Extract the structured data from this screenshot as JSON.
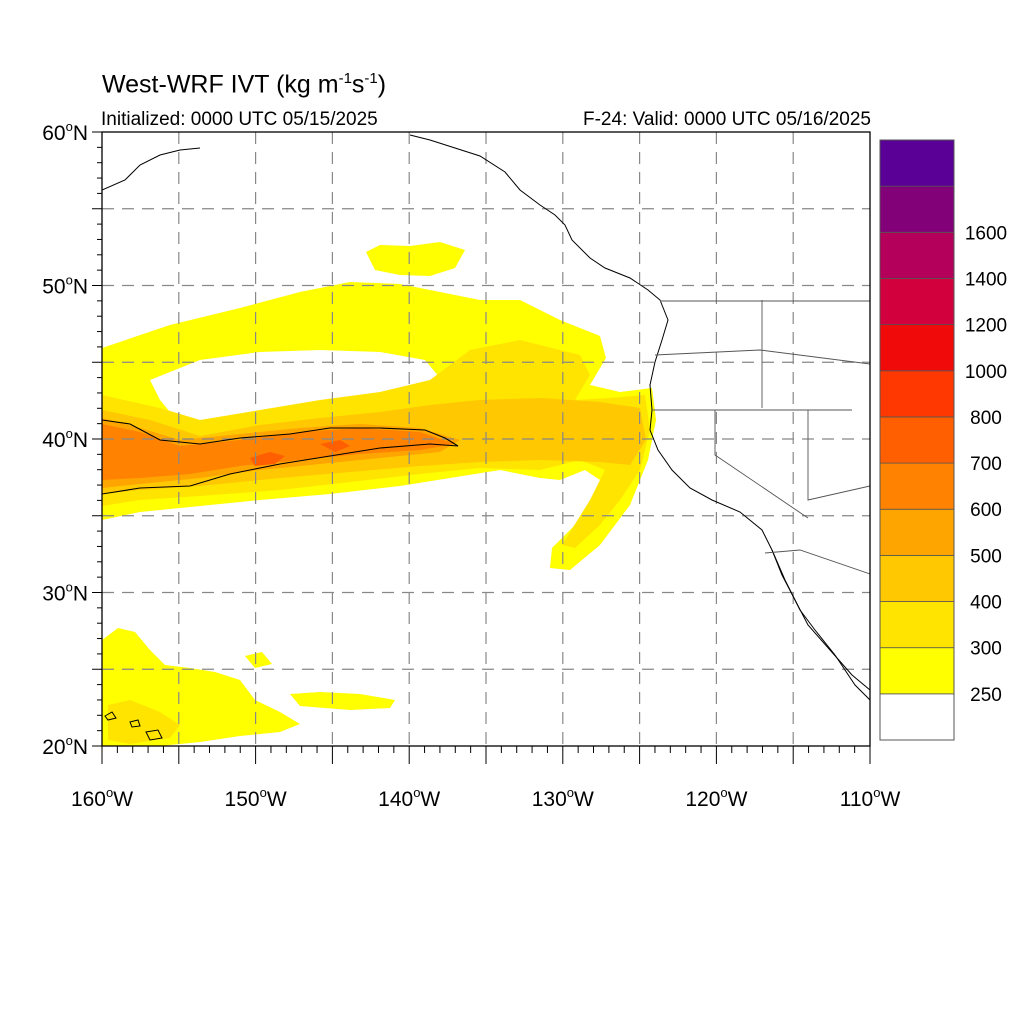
{
  "title": {
    "text": "West-WRF IVT (kg m",
    "sup1": "-1",
    "mid": "s",
    "sup2": "-1",
    "close": ")"
  },
  "initialized": "Initialized: 0000 UTC 05/15/2025",
  "valid": "F-24: Valid: 0000 UTC 05/16/2025",
  "axes": {
    "lon_range": [
      -160,
      -110
    ],
    "lat_range": [
      20,
      60
    ],
    "x_ticks": [
      {
        "value": -160,
        "label": "160",
        "deg": "o",
        "hemi": "W"
      },
      {
        "value": -150,
        "label": "150",
        "deg": "o",
        "hemi": "W"
      },
      {
        "value": -140,
        "label": "140",
        "deg": "o",
        "hemi": "W"
      },
      {
        "value": -130,
        "label": "130",
        "deg": "o",
        "hemi": "W"
      },
      {
        "value": -120,
        "label": "120",
        "deg": "o",
        "hemi": "W"
      },
      {
        "value": -110,
        "label": "110",
        "deg": "o",
        "hemi": "W"
      }
    ],
    "y_ticks": [
      {
        "value": 60,
        "label": "60",
        "deg": "o",
        "hemi": "N"
      },
      {
        "value": 50,
        "label": "50",
        "deg": "o",
        "hemi": "N"
      },
      {
        "value": 40,
        "label": "40",
        "deg": "o",
        "hemi": "N"
      },
      {
        "value": 30,
        "label": "30",
        "deg": "o",
        "hemi": "N"
      },
      {
        "value": 20,
        "label": "20",
        "deg": "o",
        "hemi": "N"
      }
    ],
    "grid_lon_step": 5,
    "grid_lat_step": 5,
    "grid": "dashed"
  },
  "colorbar": {
    "levels": [
      {
        "label": "250",
        "color": "#ffff00"
      },
      {
        "label": "300",
        "color": "#ffe400"
      },
      {
        "label": "400",
        "color": "#ffc800"
      },
      {
        "label": "500",
        "color": "#ffa500"
      },
      {
        "label": "600",
        "color": "#ff8200"
      },
      {
        "label": "700",
        "color": "#ff5f00"
      },
      {
        "label": "800",
        "color": "#ff3700"
      },
      {
        "label": "1000",
        "color": "#f00a0a"
      },
      {
        "label": "1200",
        "color": "#d2003c"
      },
      {
        "label": "1400",
        "color": "#b4005a"
      },
      {
        "label": "1600",
        "color": "#820078"
      },
      {
        "label": "",
        "color": "#5a0096"
      }
    ]
  },
  "colors": {
    "ivt250": "#ffff00",
    "ivt300": "#ffe400",
    "ivt400": "#ffc800",
    "ivt500": "#ffa500",
    "ivt600": "#ff8200",
    "ivt700": "#ff5f00"
  }
}
